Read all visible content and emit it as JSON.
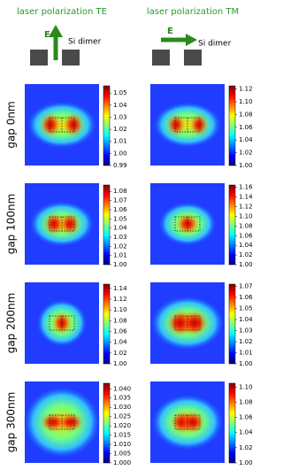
{
  "columns": [
    {
      "title": "laser polarization TE",
      "field_label": "E",
      "dimer_label": "Si dimer"
    },
    {
      "title": "laser polarization TM",
      "field_label": "E",
      "dimer_label": "Si dimer"
    }
  ],
  "rows": [
    {
      "label": "gap 0nm",
      "panels": [
        {
          "clim": [
            0.99,
            1.056
          ],
          "ticks": [
            0.99,
            {
              "value": 1,
              "label": "1.00"
            },
            1.01,
            1.02,
            1.03,
            1.04,
            1.05
          ]
        },
        {
          "clim": [
            1,
            1.125
          ],
          "ticks": [
            {
              "value": 1,
              "label": "1.00"
            },
            1.02,
            1.04,
            1.06,
            1.08,
            {
              "value": 1.1,
              "label": "1.10"
            },
            1.12
          ]
        }
      ]
    },
    {
      "label": "gap 100nm",
      "panels": [
        {
          "clim": [
            1,
            1.087
          ],
          "ticks": [
            {
              "value": 1,
              "label": "1.00"
            },
            1.01,
            1.02,
            1.03,
            1.04,
            1.05,
            1.06,
            1.07,
            1.08
          ]
        },
        {
          "clim": [
            1,
            1.165
          ],
          "ticks": [
            {
              "value": 1,
              "label": "1.00"
            },
            1.02,
            1.04,
            1.06,
            1.08,
            {
              "value": 1.1,
              "label": "1.10"
            },
            1.12,
            1.14,
            1.16
          ]
        }
      ]
    },
    {
      "label": "gap 200nm",
      "panels": [
        {
          "clim": [
            1,
            1.148
          ],
          "ticks": [
            {
              "value": 1,
              "label": "1.00"
            },
            1.02,
            1.04,
            1.06,
            1.08,
            {
              "value": 1.1,
              "label": "1.10"
            },
            1.12,
            1.14
          ]
        },
        {
          "clim": [
            1,
            1.072
          ],
          "ticks": [
            {
              "value": 1,
              "label": "1.00"
            },
            1.01,
            1.02,
            1.03,
            1.04,
            1.05,
            1.06,
            1.07
          ]
        }
      ]
    },
    {
      "label": "gap 300nm",
      "panels": [
        {
          "clim": [
            1,
            1.043
          ],
          "ticks": [
            {
              "value": 1,
              "label": "1.000"
            },
            1.005,
            {
              "value": 1.01,
              "label": "1.010"
            },
            1.015,
            {
              "value": 1.02,
              "label": "1.020"
            },
            1.025,
            {
              "value": 1.03,
              "label": "1.030"
            },
            1.035,
            {
              "value": 1.04,
              "label": "1.040"
            }
          ]
        },
        {
          "clim": [
            1,
            1.105
          ],
          "ticks": [
            {
              "value": 1,
              "label": "1.00"
            },
            1.02,
            1.04,
            1.06,
            1.08,
            {
              "value": 1.1,
              "label": "1.10"
            }
          ]
        }
      ]
    }
  ]
}
